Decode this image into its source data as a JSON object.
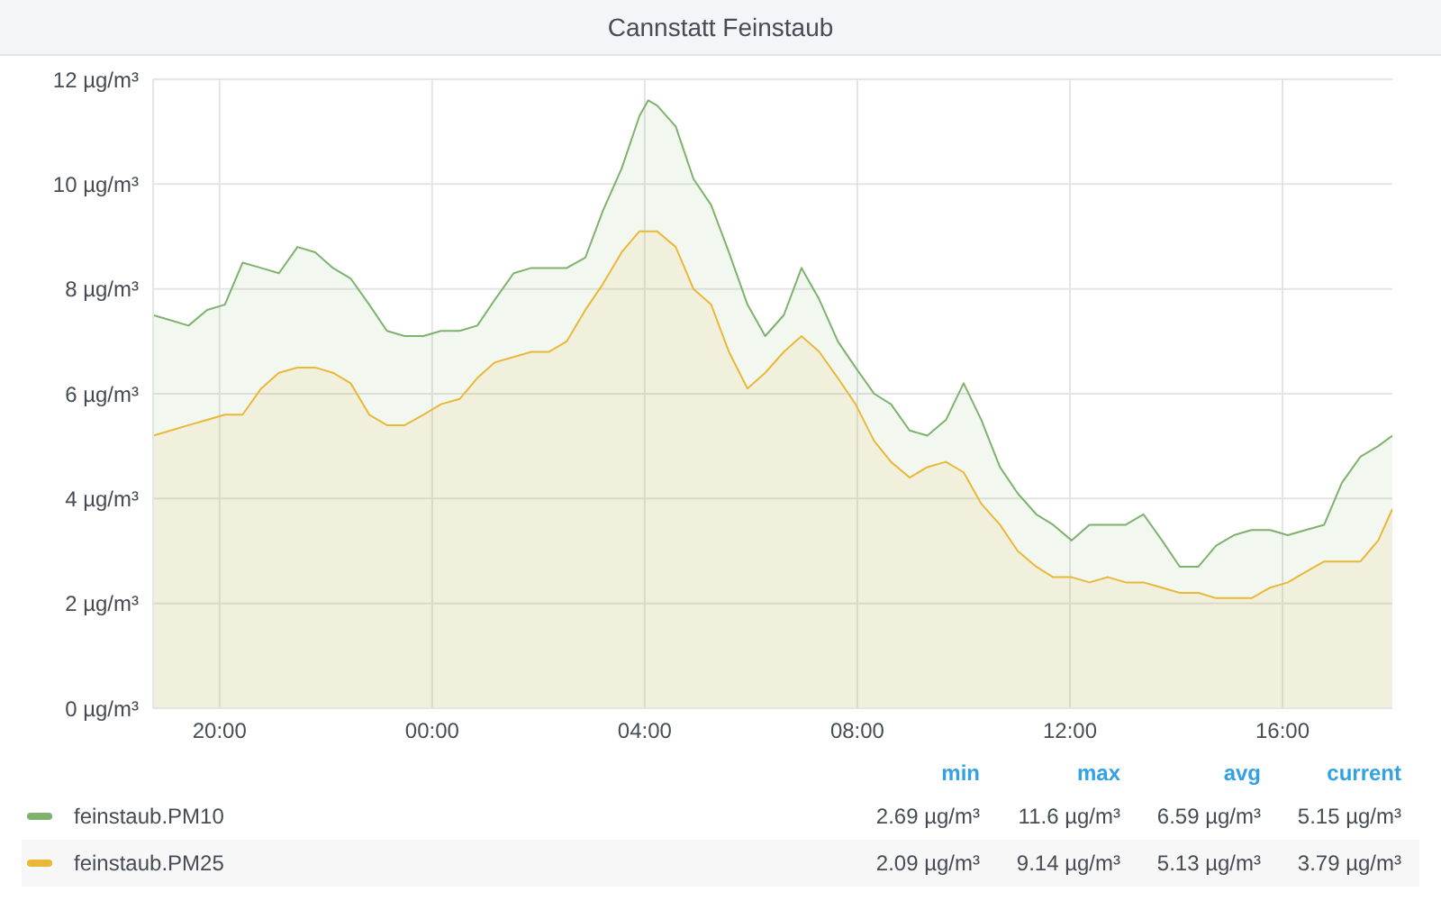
{
  "chart_data": {
    "type": "area",
    "title": "Cannstatt Feinstaub",
    "x": [
      "--01-01T18:45",
      "--01-01T19:05",
      "--01-01T19:25",
      "--01-01T19:46",
      "--01-01T20:06",
      "--01-01T20:26",
      "--01-01T20:47",
      "--01-01T21:07",
      "--01-01T21:28",
      "--01-01T21:48",
      "--01-01T22:08",
      "--01-01T22:28",
      "--01-01T22:49",
      "--01-01T23:09",
      "--01-01T23:29",
      "--01-01T23:50",
      "--01-02T00:10",
      "--01-02T00:31",
      "--01-02T00:51",
      "--01-02T01:11",
      "--01-02T01:32",
      "--01-02T01:52",
      "--01-02T02:12",
      "--01-02T02:32",
      "--01-02T02:53",
      "--01-02T03:13",
      "--01-02T03:34",
      "--01-02T03:54",
      "--01-02T04:04",
      "--01-02T04:14",
      "--01-02T04:35",
      "--01-02T04:55",
      "--01-02T05:15",
      "--01-02T05:35",
      "--01-02T05:56",
      "--01-02T06:16",
      "--01-02T06:37",
      "--01-02T06:57",
      "--01-02T07:17",
      "--01-02T07:38",
      "--01-02T07:58",
      "--01-02T08:19",
      "--01-02T08:38",
      "--01-02T08:59",
      "--01-02T09:19",
      "--01-02T09:40",
      "--01-02T10:00",
      "--01-02T10:20",
      "--01-02T10:41",
      "--01-02T11:01",
      "--01-02T11:22",
      "--01-02T11:41",
      "--01-02T12:02",
      "--01-02T12:22",
      "--01-02T12:43",
      "--01-02T13:03",
      "--01-02T13:23",
      "--01-02T13:44",
      "--01-02T14:04",
      "--01-02T14:25",
      "--01-02T14:45",
      "--01-02T15:05",
      "--01-02T15:25",
      "--01-02T15:46",
      "--01-02T16:06",
      "--01-02T16:26",
      "--01-02T16:47",
      "--01-02T17:07",
      "--01-02T17:28",
      "--01-02T17:48",
      "--01-02T18:04"
    ],
    "series": [
      {
        "name": "feinstaub.PM10",
        "color": "#7eb26d",
        "values": [
          7.5,
          7.4,
          7.3,
          7.6,
          7.7,
          8.5,
          8.4,
          8.3,
          8.8,
          8.7,
          8.4,
          8.2,
          7.7,
          7.2,
          7.1,
          7.1,
          7.2,
          7.2,
          7.3,
          7.8,
          8.3,
          8.4,
          8.4,
          8.4,
          8.6,
          9.5,
          10.3,
          11.3,
          11.6,
          11.5,
          11.1,
          10.1,
          9.6,
          8.7,
          7.7,
          7.1,
          7.5,
          8.4,
          7.8,
          7.0,
          6.5,
          6.0,
          5.8,
          5.3,
          5.2,
          5.5,
          6.2,
          5.5,
          4.6,
          4.1,
          3.7,
          3.5,
          3.2,
          3.5,
          3.5,
          3.5,
          3.7,
          3.2,
          2.7,
          2.7,
          3.1,
          3.3,
          3.4,
          3.4,
          3.3,
          3.4,
          3.5,
          4.3,
          4.8,
          5.0,
          5.2
        ]
      },
      {
        "name": "feinstaub.PM25",
        "color": "#eab839",
        "values": [
          5.2,
          5.3,
          5.4,
          5.5,
          5.6,
          5.6,
          6.1,
          6.4,
          6.5,
          6.5,
          6.4,
          6.2,
          5.6,
          5.4,
          5.4,
          5.6,
          5.8,
          5.9,
          6.3,
          6.6,
          6.7,
          6.8,
          6.8,
          7.0,
          7.6,
          8.1,
          8.7,
          9.1,
          9.1,
          9.1,
          8.8,
          8.0,
          7.7,
          6.8,
          6.1,
          6.4,
          6.8,
          7.1,
          6.8,
          6.3,
          5.8,
          5.1,
          4.7,
          4.4,
          4.6,
          4.7,
          4.5,
          3.9,
          3.5,
          3.0,
          2.7,
          2.5,
          2.5,
          2.4,
          2.5,
          2.4,
          2.4,
          2.3,
          2.2,
          2.2,
          2.1,
          2.1,
          2.1,
          2.3,
          2.4,
          2.6,
          2.8,
          2.8,
          2.8,
          3.2,
          3.8
        ]
      }
    ],
    "xlim": [
      "--01-01T18:45",
      "--01-02T18:04"
    ],
    "xticks": [
      {
        "value": "--01-01T20:00",
        "label": "20:00"
      },
      {
        "value": "--01-02T00:00",
        "label": "00:00"
      },
      {
        "value": "--01-02T04:00",
        "label": "04:00"
      },
      {
        "value": "--01-02T08:00",
        "label": "08:00"
      },
      {
        "value": "--01-02T12:00",
        "label": "12:00"
      },
      {
        "value": "--01-02T16:00",
        "label": "16:00"
      }
    ],
    "ylim": [
      0,
      12
    ],
    "yticks": [
      {
        "value": 0,
        "label": "0 µg/m³"
      },
      {
        "value": 2,
        "label": "2 µg/m³"
      },
      {
        "value": 4,
        "label": "4 µg/m³"
      },
      {
        "value": 6,
        "label": "6 µg/m³"
      },
      {
        "value": 8,
        "label": "8 µg/m³"
      },
      {
        "value": 10,
        "label": "10 µg/m³"
      },
      {
        "value": 12,
        "label": "12 µg/m³"
      }
    ],
    "grid": true,
    "legend": "bottom",
    "annotations": [
      "min",
      "max",
      "avg",
      "current",
      "2.69 µg/m³",
      "11.6 µg/m³",
      "6.59 µg/m³",
      "5.15 µg/m³",
      "2.09 µg/m³",
      "9.14 µg/m³",
      "5.13 µg/m³",
      "3.79 µg/m³"
    ]
  }
}
